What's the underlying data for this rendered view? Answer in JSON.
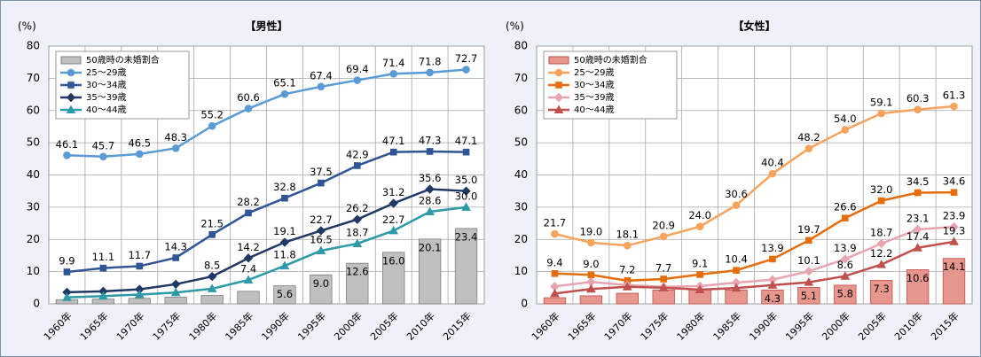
{
  "chart_data": [
    {
      "type": "bar-line",
      "title": "【男性】",
      "y_label": "(%)",
      "categories": [
        "1960年",
        "1965年",
        "1970年",
        "1975年",
        "1980年",
        "1985年",
        "1990年",
        "1995年",
        "2000年",
        "2005年",
        "2010年",
        "2015年"
      ],
      "ylim": [
        0,
        80
      ],
      "yticks": [
        0,
        10,
        20,
        30,
        40,
        50,
        60,
        70,
        80
      ],
      "grid": true,
      "legend": "upper left",
      "series": [
        {
          "name": "50歳時の未婚割合",
          "kind": "bar",
          "color": "#bfbfbf",
          "values": [
            1.3,
            1.5,
            1.7,
            2.1,
            2.6,
            3.9,
            5.6,
            9.0,
            12.6,
            16.0,
            20.1,
            23.4
          ],
          "value_labels": [
            null,
            null,
            null,
            null,
            null,
            null,
            "5.6",
            "9.0",
            "12.6",
            "16.0",
            "20.1",
            "23.4"
          ]
        },
        {
          "name": "25～29歳",
          "kind": "line",
          "marker": "circle",
          "color": "#5b9bd5",
          "values": [
            46.1,
            45.7,
            46.5,
            48.3,
            55.2,
            60.6,
            65.1,
            67.4,
            69.4,
            71.4,
            71.8,
            72.7
          ],
          "value_labels": [
            "46.1",
            "45.7",
            "46.5",
            "48.3",
            "55.2",
            "60.6",
            "65.1",
            "67.4",
            "69.4",
            "71.4",
            "71.8",
            "72.7"
          ]
        },
        {
          "name": "30～34歳",
          "kind": "line",
          "marker": "square",
          "color": "#2f5597",
          "values": [
            9.9,
            11.1,
            11.7,
            14.3,
            21.5,
            28.2,
            32.8,
            37.5,
            42.9,
            47.1,
            47.3,
            47.1
          ],
          "value_labels": [
            "9.9",
            "11.1",
            "11.7",
            "14.3",
            "21.5",
            "28.2",
            "32.8",
            "37.5",
            "42.9",
            "47.1",
            "47.3",
            "47.1"
          ]
        },
        {
          "name": "35～39歳",
          "kind": "line",
          "marker": "diamond",
          "color": "#1f3864",
          "values": [
            3.6,
            3.9,
            4.5,
            6.1,
            8.5,
            14.2,
            19.1,
            22.7,
            26.2,
            31.2,
            35.6,
            35.0
          ],
          "value_labels": [
            null,
            null,
            null,
            null,
            "8.5",
            "14.2",
            "19.1",
            "22.7",
            "26.2",
            "31.2",
            "35.6",
            "35.0"
          ]
        },
        {
          "name": "40～44歳",
          "kind": "line",
          "marker": "triangle",
          "color": "#2e9aa8",
          "values": [
            2.0,
            2.4,
            2.9,
            3.5,
            4.7,
            7.4,
            11.8,
            16.5,
            18.7,
            22.7,
            28.6,
            30.0
          ],
          "value_labels": [
            null,
            null,
            null,
            null,
            null,
            "7.4",
            "11.8",
            "16.5",
            "18.7",
            "22.7",
            "28.6",
            "30.0"
          ]
        }
      ]
    },
    {
      "type": "bar-line",
      "title": "【女性】",
      "y_label": "(%)",
      "categories": [
        "1960年",
        "1965年",
        "1970年",
        "1975年",
        "1980年",
        "1985年",
        "1990年",
        "1995年",
        "2000年",
        "2005年",
        "2010年",
        "2015年"
      ],
      "ylim": [
        0,
        80
      ],
      "yticks": [
        0,
        10,
        20,
        30,
        40,
        50,
        60,
        70,
        80
      ],
      "grid": true,
      "legend": "upper left",
      "series": [
        {
          "name": "50歳時の未婚割合",
          "kind": "bar",
          "color": "#e6968c",
          "values": [
            1.9,
            2.5,
            3.3,
            4.3,
            4.5,
            4.3,
            4.3,
            5.1,
            5.8,
            7.3,
            10.6,
            14.1
          ],
          "value_labels": [
            null,
            null,
            null,
            null,
            null,
            null,
            "4.3",
            "5.1",
            "5.8",
            "7.3",
            "10.6",
            "14.1"
          ]
        },
        {
          "name": "25～29歳",
          "kind": "line",
          "marker": "circle",
          "color": "#f7a35c",
          "values": [
            21.7,
            19.0,
            18.1,
            20.9,
            24.0,
            30.6,
            40.4,
            48.2,
            54.0,
            59.1,
            60.3,
            61.3
          ],
          "value_labels": [
            "21.7",
            "19.0",
            "18.1",
            "20.9",
            "24.0",
            "30.6",
            "40.4",
            "48.2",
            "54.0",
            "59.1",
            "60.3",
            "61.3"
          ]
        },
        {
          "name": "30～34歳",
          "kind": "line",
          "marker": "square",
          "color": "#e46c0a",
          "values": [
            9.4,
            9.0,
            7.2,
            7.7,
            9.1,
            10.4,
            13.9,
            19.7,
            26.6,
            32.0,
            34.5,
            34.6
          ],
          "value_labels": [
            "9.4",
            "9.0",
            "7.2",
            "7.7",
            "9.1",
            "10.4",
            "13.9",
            "19.7",
            "26.6",
            "32.0",
            "34.5",
            "34.6"
          ]
        },
        {
          "name": "35～39歳",
          "kind": "line",
          "marker": "diamond",
          "color": "#e6a5b0",
          "values": [
            5.4,
            6.8,
            5.8,
            5.3,
            5.5,
            6.6,
            7.5,
            10.1,
            13.9,
            18.7,
            23.1,
            23.9
          ],
          "value_labels": [
            null,
            null,
            null,
            null,
            null,
            null,
            null,
            "10.1",
            "13.9",
            "18.7",
            "23.1",
            "23.9"
          ]
        },
        {
          "name": "40～44歳",
          "kind": "line",
          "marker": "triangle",
          "color": "#c0504d",
          "values": [
            3.2,
            4.6,
            5.3,
            5.0,
            4.4,
            4.9,
            5.8,
            6.7,
            8.6,
            12.2,
            17.4,
            19.3
          ],
          "value_labels": [
            null,
            null,
            null,
            null,
            null,
            null,
            null,
            null,
            "8.6",
            "12.2",
            "17.4",
            "19.3"
          ]
        }
      ]
    }
  ]
}
